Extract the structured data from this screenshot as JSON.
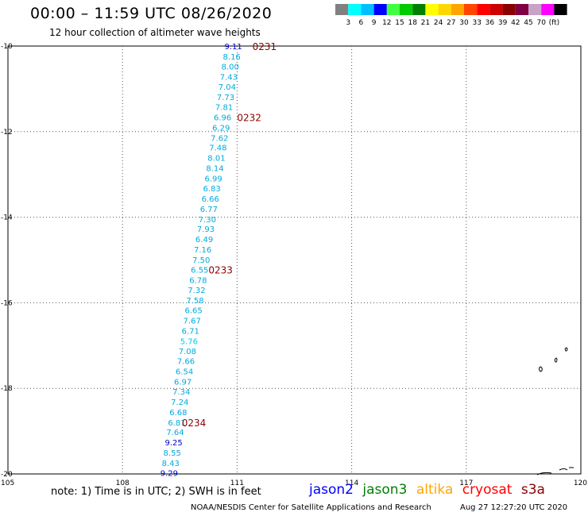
{
  "header": {
    "title": "00:00 – 11:59 UTC 08/26/2020",
    "subtitle": "12 hour collection of altimeter wave heights"
  },
  "colorbar": {
    "colors": [
      "#808080",
      "#00ffff",
      "#00bfff",
      "#0000ff",
      "#40ff40",
      "#00cc00",
      "#008000",
      "#ffff00",
      "#ffd700",
      "#ffa500",
      "#ff4500",
      "#ff0000",
      "#cc0000",
      "#8b0000",
      "#800040",
      "#c8a2c8",
      "#ff00ff",
      "#000000"
    ],
    "labels": [
      "3",
      "6",
      "9",
      "12",
      "15",
      "18",
      "21",
      "24",
      "27",
      "30",
      "33",
      "36",
      "39",
      "42",
      "45",
      "70",
      "(ft)"
    ]
  },
  "footer": {
    "note": "note: 1) Time is in UTC; 2) SWH is in feet",
    "credit": "NOAA/NESDIS Center for Satellite Applications and Research",
    "timestamp": "Aug 27 12:27:20 UTC 2020",
    "legend": [
      {
        "name": "jason2",
        "color": "#0000ff"
      },
      {
        "name": "jason3",
        "color": "#008000"
      },
      {
        "name": "altika",
        "color": "#ffa500"
      },
      {
        "name": "cryosat",
        "color": "#ff0000"
      },
      {
        "name": "s3a",
        "color": "#8b0000"
      }
    ]
  },
  "chart_data": {
    "type": "scatter",
    "title": "00:00 – 11:59 UTC 08/26/2020",
    "subtitle": "12 hour collection of altimeter wave heights",
    "xlabel": "",
    "ylabel": "",
    "xlim": [
      105,
      120
    ],
    "ylim": [
      -20,
      -10
    ],
    "x_ticks": [
      105,
      108,
      111,
      114,
      117,
      120
    ],
    "x_tick_labels": [
      "105",
      "108",
      "111",
      "114",
      "117",
      "120"
    ],
    "y_ticks": [
      -10,
      -12,
      -14,
      -16,
      -18,
      -20
    ],
    "y_tick_labels": [
      "-10",
      "-12",
      "-14",
      "-16",
      "-18",
      "-20"
    ],
    "grid": true,
    "units": "ft",
    "points": [
      {
        "lon": 110.9,
        "lat": -10.0,
        "value": "9.11",
        "color": "#0000cc"
      },
      {
        "lon": 110.86,
        "lat": -10.24,
        "value": "8.16",
        "color": "#00aadd"
      },
      {
        "lon": 110.82,
        "lat": -10.47,
        "value": "8.00",
        "color": "#00aadd"
      },
      {
        "lon": 110.78,
        "lat": -10.71,
        "value": "7.43",
        "color": "#00aadd"
      },
      {
        "lon": 110.74,
        "lat": -10.95,
        "value": "7.04",
        "color": "#00aadd"
      },
      {
        "lon": 110.7,
        "lat": -11.19,
        "value": "7.73",
        "color": "#00aadd"
      },
      {
        "lon": 110.66,
        "lat": -11.42,
        "value": "7.81",
        "color": "#00aadd"
      },
      {
        "lon": 110.62,
        "lat": -11.66,
        "value": "6.96",
        "color": "#00aadd"
      },
      {
        "lon": 110.58,
        "lat": -11.9,
        "value": "6.29",
        "color": "#00aadd"
      },
      {
        "lon": 110.54,
        "lat": -12.14,
        "value": "7.62",
        "color": "#00aadd"
      },
      {
        "lon": 110.5,
        "lat": -12.37,
        "value": "7.48",
        "color": "#00aadd"
      },
      {
        "lon": 110.46,
        "lat": -12.61,
        "value": "8.01",
        "color": "#00aadd"
      },
      {
        "lon": 110.42,
        "lat": -12.85,
        "value": "8.14",
        "color": "#00aadd"
      },
      {
        "lon": 110.38,
        "lat": -13.09,
        "value": "6.99",
        "color": "#00aadd"
      },
      {
        "lon": 110.34,
        "lat": -13.32,
        "value": "6.83",
        "color": "#00aadd"
      },
      {
        "lon": 110.3,
        "lat": -13.56,
        "value": "6.66",
        "color": "#00aadd"
      },
      {
        "lon": 110.26,
        "lat": -13.8,
        "value": "6.77",
        "color": "#00aadd"
      },
      {
        "lon": 110.22,
        "lat": -14.04,
        "value": "7.30",
        "color": "#00aadd"
      },
      {
        "lon": 110.18,
        "lat": -14.27,
        "value": "7.93",
        "color": "#00aadd"
      },
      {
        "lon": 110.14,
        "lat": -14.51,
        "value": "6.49",
        "color": "#00aadd"
      },
      {
        "lon": 110.1,
        "lat": -14.75,
        "value": "7.16",
        "color": "#00aadd"
      },
      {
        "lon": 110.06,
        "lat": -14.99,
        "value": "7.50",
        "color": "#00aadd"
      },
      {
        "lon": 110.02,
        "lat": -15.22,
        "value": "6.55",
        "color": "#00aadd"
      },
      {
        "lon": 109.98,
        "lat": -15.46,
        "value": "6.78",
        "color": "#00aadd"
      },
      {
        "lon": 109.94,
        "lat": -15.7,
        "value": "7.32",
        "color": "#00aadd"
      },
      {
        "lon": 109.9,
        "lat": -15.94,
        "value": "7.58",
        "color": "#00aadd"
      },
      {
        "lon": 109.86,
        "lat": -16.17,
        "value": "6.65",
        "color": "#00aadd"
      },
      {
        "lon": 109.82,
        "lat": -16.41,
        "value": "7.67",
        "color": "#00aadd"
      },
      {
        "lon": 109.78,
        "lat": -16.65,
        "value": "6.71",
        "color": "#00aadd"
      },
      {
        "lon": 109.74,
        "lat": -16.89,
        "value": "5.76",
        "color": "#00ccee"
      },
      {
        "lon": 109.7,
        "lat": -17.12,
        "value": "7.08",
        "color": "#00aadd"
      },
      {
        "lon": 109.66,
        "lat": -17.36,
        "value": "7.66",
        "color": "#00aadd"
      },
      {
        "lon": 109.62,
        "lat": -17.6,
        "value": "6.54",
        "color": "#00aadd"
      },
      {
        "lon": 109.58,
        "lat": -17.84,
        "value": "6.97",
        "color": "#00aadd"
      },
      {
        "lon": 109.54,
        "lat": -18.07,
        "value": "7.34",
        "color": "#00aadd"
      },
      {
        "lon": 109.5,
        "lat": -18.31,
        "value": "7.24",
        "color": "#00aadd"
      },
      {
        "lon": 109.46,
        "lat": -18.55,
        "value": "6.68",
        "color": "#00aadd"
      },
      {
        "lon": 109.42,
        "lat": -18.79,
        "value": "6.81",
        "color": "#00aadd"
      },
      {
        "lon": 109.38,
        "lat": -19.02,
        "value": "7.64",
        "color": "#00aadd"
      },
      {
        "lon": 109.34,
        "lat": -19.26,
        "value": "9.25",
        "color": "#0000cc"
      },
      {
        "lon": 109.3,
        "lat": -19.5,
        "value": "8.55",
        "color": "#00aadd"
      },
      {
        "lon": 109.26,
        "lat": -19.74,
        "value": "8.43",
        "color": "#00aadd"
      },
      {
        "lon": 109.22,
        "lat": -19.97,
        "value": "9.29",
        "color": "#0000cc"
      }
    ],
    "time_labels": [
      {
        "lon": 111.4,
        "lat": -10.0,
        "text": "0231",
        "color": "#8b0000"
      },
      {
        "lon": 111.0,
        "lat": -11.66,
        "text": "0232",
        "color": "#8b0000"
      },
      {
        "lon": 110.25,
        "lat": -15.22,
        "text": "0233",
        "color": "#8b0000"
      },
      {
        "lon": 109.55,
        "lat": -18.79,
        "text": "0234",
        "color": "#8b0000"
      }
    ]
  }
}
